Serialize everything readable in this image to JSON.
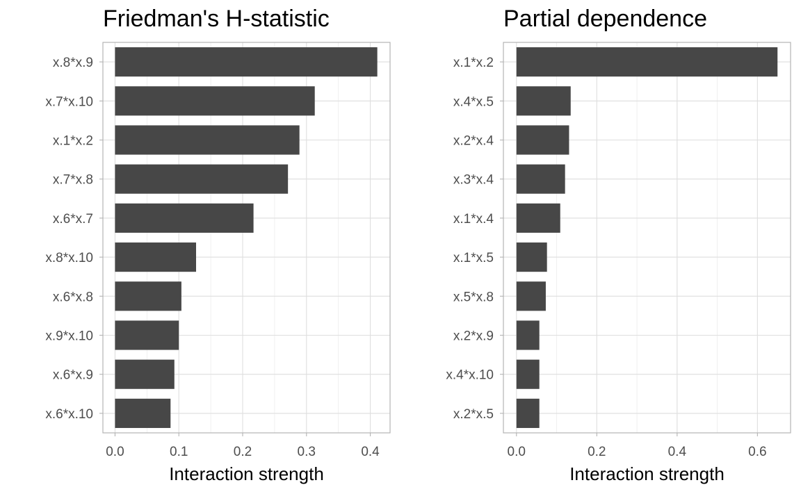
{
  "chart_data": [
    {
      "type": "bar",
      "orientation": "horizontal",
      "title": "Friedman's H-statistic",
      "xlabel": "Interaction strength",
      "ylabel": "",
      "categories": [
        "x.8*x.9",
        "x.7*x.10",
        "x.1*x.2",
        "x.7*x.8",
        "x.6*x.7",
        "x.8*x.10",
        "x.6*x.8",
        "x.9*x.10",
        "x.6*x.9",
        "x.6*x.10"
      ],
      "values": [
        0.411,
        0.313,
        0.289,
        0.271,
        0.217,
        0.127,
        0.104,
        0.1,
        0.093,
        0.087
      ],
      "xlim": [
        -0.019,
        0.431
      ],
      "xticks": [
        0.0,
        0.1,
        0.2,
        0.3,
        0.4
      ],
      "xtick_labels": [
        "0.0",
        "0.1",
        "0.2",
        "0.3",
        "0.4"
      ],
      "grid": true,
      "bar_color": "#474747"
    },
    {
      "type": "bar",
      "orientation": "horizontal",
      "title": "Partial dependence",
      "xlabel": "Interaction strength",
      "ylabel": "",
      "categories": [
        "x.1*x.2",
        "x.4*x.5",
        "x.2*x.4",
        "x.3*x.4",
        "x.1*x.4",
        "x.1*x.5",
        "x.5*x.8",
        "x.2*x.9",
        "x.4*x.10",
        "x.2*x.5"
      ],
      "values": [
        0.65,
        0.135,
        0.131,
        0.121,
        0.109,
        0.076,
        0.073,
        0.057,
        0.057,
        0.057
      ],
      "xlim": [
        -0.0325,
        0.6825
      ],
      "xticks": [
        0.0,
        0.2,
        0.4,
        0.6
      ],
      "xtick_labels": [
        "0.0",
        "0.2",
        "0.4",
        "0.6"
      ],
      "grid": true,
      "bar_color": "#474747"
    }
  ]
}
